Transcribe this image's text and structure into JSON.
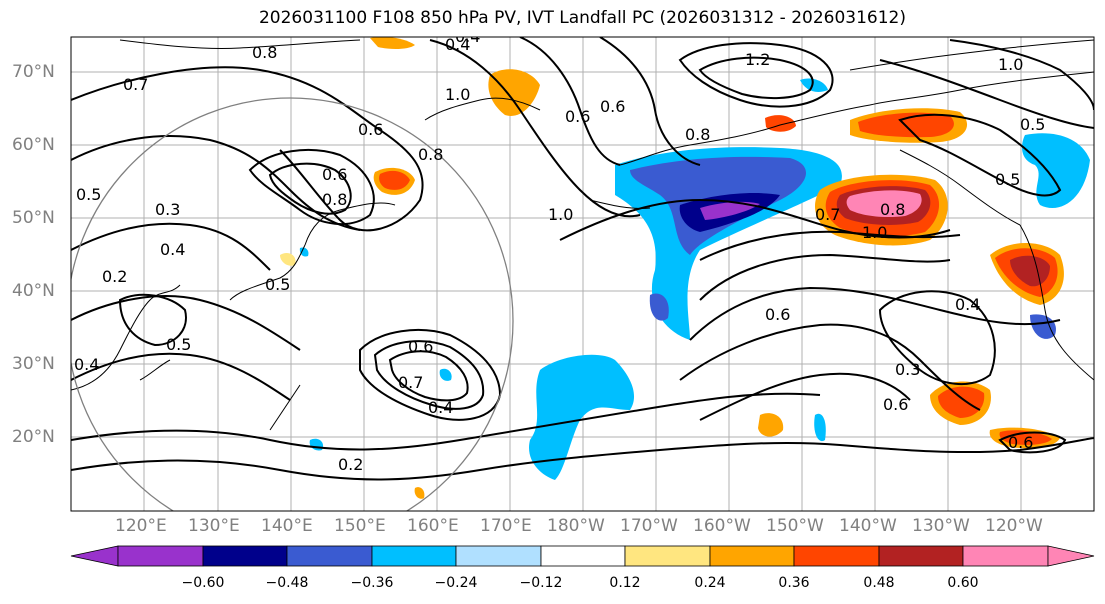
{
  "title": "2026031100 F108 850 hPa PV, IVT Landfall PC (2026031312 - 2026031612)",
  "lat_labels": [
    "70°N",
    "60°N",
    "50°N",
    "40°N",
    "30°N",
    "20°N"
  ],
  "lon_labels": [
    "120°E",
    "130°E",
    "140°E",
    "150°E",
    "160°E",
    "170°E",
    "180°W",
    "170°W",
    "160°W",
    "150°W",
    "140°W",
    "130°W",
    "120°W"
  ],
  "contour_labels": [
    "0.4",
    "0.8",
    "1.2",
    "1.0",
    "0.7",
    "0.8",
    "1.0",
    "0.6",
    "0.5",
    "0.3",
    "0.4",
    "0.2",
    "0.8",
    "0.6",
    "0.5",
    "0.5",
    "0.8",
    "0.6",
    "0.4",
    "0.5",
    "1.0",
    "0.7",
    "0.8",
    "1.0",
    "0.6",
    "0.4",
    "0.3",
    "0.6",
    "0.5",
    "0.7",
    "0.6",
    "0.4",
    "0.2",
    "0.6",
    "0.4",
    "0.6"
  ],
  "colorbar": {
    "ticks": [
      "−0.60",
      "−0.48",
      "−0.36",
      "−0.24",
      "−0.12",
      "0.12",
      "0.24",
      "0.36",
      "0.48",
      "0.60"
    ],
    "colors": [
      "#9932cc",
      "#00008b",
      "#3a5bd1",
      "#00bfff",
      "#b0e0ff",
      "#ffffff",
      "#ffe680",
      "#ffa500",
      "#ff4500",
      "#b22222",
      "#ff85b5"
    ]
  }
}
